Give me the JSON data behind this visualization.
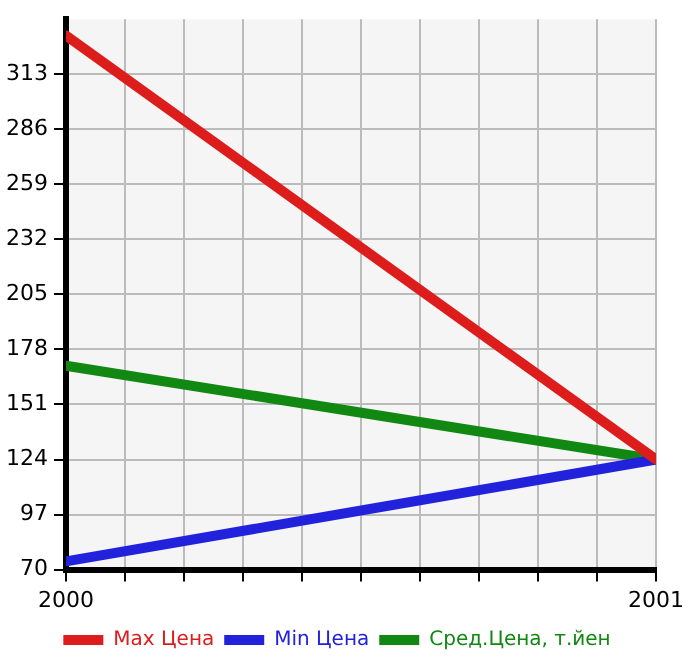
{
  "chart_data": {
    "type": "line",
    "x": [
      2000,
      2001
    ],
    "series": [
      {
        "name": "Max Цена",
        "color": "#dd1c1c",
        "values": [
          332,
          124
        ]
      },
      {
        "name": "Min Цена",
        "color": "#2222dd",
        "values": [
          74,
          124
        ]
      },
      {
        "name": "Сред.Цена, т.йен",
        "color": "#118811",
        "values": [
          170,
          124
        ]
      }
    ],
    "xlim": [
      2000,
      2001
    ],
    "xticks": [
      2000,
      {
        "value": 2000.1,
        "label": null
      },
      {
        "value": 2000.2,
        "label": null
      },
      {
        "value": 2000.3,
        "label": null
      },
      {
        "value": 2000.4,
        "label": null
      },
      {
        "value": 2000.5,
        "label": null
      },
      {
        "value": 2000.6,
        "label": null
      },
      {
        "value": 2000.7,
        "label": null
      },
      {
        "value": 2000.8,
        "label": null
      },
      {
        "value": 2000.9,
        "label": null
      },
      2001
    ],
    "ylim": [
      70,
      340
    ],
    "yticks": [
      70,
      97,
      124,
      151,
      178,
      205,
      232,
      259,
      286,
      313
    ],
    "grid": true,
    "legend": "bottom",
    "marker": "none",
    "line_style": "solid"
  }
}
